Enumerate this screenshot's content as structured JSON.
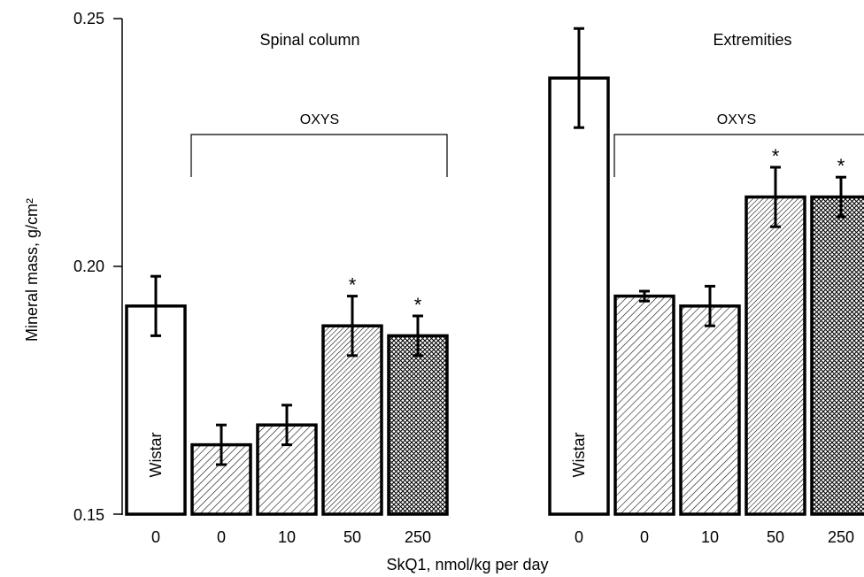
{
  "ylabel": "Mineral mass, g/cm²",
  "xlabel": "SkQ1, nmol/kg per day",
  "y_ticks": [
    "0.15",
    "0.20",
    "0.25"
  ],
  "colors": {
    "ink": "#000000",
    "bar_fill": "#ffffff"
  },
  "chart_data": [
    {
      "type": "bar",
      "title": "Spinal column",
      "group_label": "OXYS",
      "bar_label": "Wistar",
      "categories": [
        "0",
        "0",
        "10",
        "50",
        "250"
      ],
      "values": [
        0.192,
        0.164,
        0.168,
        0.188,
        0.186
      ],
      "errors": [
        0.006,
        0.004,
        0.004,
        0.006,
        0.004
      ],
      "patterns": [
        "none",
        "hatch",
        "hatch",
        "hatch-dense",
        "crosshatch"
      ],
      "annotations": [
        "",
        "",
        "",
        "*",
        "*"
      ],
      "ylim": [
        0.15,
        0.25
      ],
      "ylabel": "Mineral mass, g/cm²",
      "xlabel": "SkQ1, nmol/kg per day"
    },
    {
      "type": "bar",
      "title": "Extremities",
      "group_label": "OXYS",
      "bar_label": "Wistar",
      "categories": [
        "0",
        "0",
        "10",
        "50",
        "250"
      ],
      "values": [
        0.238,
        0.194,
        0.192,
        0.214,
        0.214
      ],
      "errors": [
        0.01,
        0.001,
        0.004,
        0.006,
        0.004
      ],
      "patterns": [
        "none",
        "hatch",
        "hatch",
        "hatch-dense",
        "crosshatch"
      ],
      "annotations": [
        "",
        "",
        "",
        "*",
        "*"
      ],
      "ylim": [
        0.15,
        0.25
      ]
    }
  ]
}
